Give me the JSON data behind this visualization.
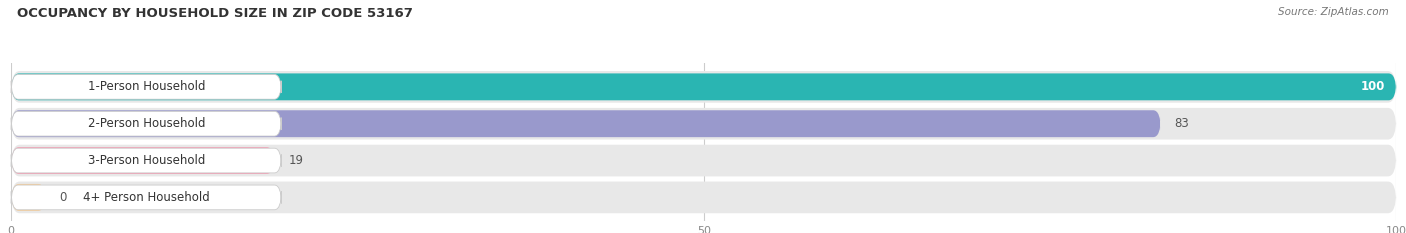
{
  "title": "OCCUPANCY BY HOUSEHOLD SIZE IN ZIP CODE 53167",
  "source": "Source: ZipAtlas.com",
  "categories": [
    "1-Person Household",
    "2-Person Household",
    "3-Person Household",
    "4+ Person Household"
  ],
  "values": [
    100,
    83,
    19,
    0
  ],
  "bar_colors": [
    "#2ab5b2",
    "#9999cc",
    "#f4a0b5",
    "#f5cc99"
  ],
  "background_color": "#ffffff",
  "row_bg_color": "#e8e8e8",
  "xlim": [
    0,
    100
  ],
  "xticks": [
    0,
    50,
    100
  ],
  "bar_height": 0.72,
  "figsize": [
    14.06,
    2.33
  ],
  "dpi": 100,
  "title_color": "#333333",
  "source_color": "#777777",
  "label_font_size": 8.5,
  "value_font_size": 8.5,
  "title_font_size": 9.5
}
